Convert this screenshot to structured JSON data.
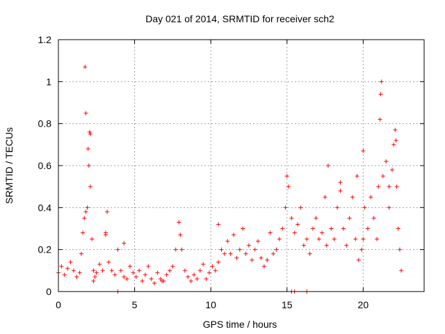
{
  "chart_data": {
    "type": "scatter",
    "title": "Day 021 of 2014, SRMTID for receiver sch2",
    "xlabel": "GPS time / hours",
    "ylabel": "SRMTID / TECUs",
    "xlim": [
      0,
      24
    ],
    "ylim": [
      0,
      1.2
    ],
    "xticks": [
      0,
      5,
      10,
      15,
      20
    ],
    "xtick_labels": [
      "0",
      "5",
      "10",
      "15",
      "20"
    ],
    "yticks": [
      0,
      0.2,
      0.4,
      0.6,
      0.8,
      1,
      1.2
    ],
    "ytick_labels": [
      "0",
      "0.2",
      "0.4",
      "0.6",
      "0.8",
      "1",
      "1.2"
    ],
    "grid": true,
    "marker": "+",
    "series": [
      {
        "name": "sch2",
        "color": "#ff0000",
        "x": [
          0.0,
          0.2,
          0.4,
          0.6,
          0.8,
          1.0,
          1.2,
          1.4,
          1.5,
          1.6,
          1.7,
          1.75,
          1.8,
          1.9,
          2.0,
          2.05,
          2.1,
          2.2,
          2.3,
          2.4,
          2.5,
          2.7,
          2.9,
          3.1,
          3.2,
          3.3,
          3.5,
          3.7,
          3.9,
          4.1,
          4.3,
          4.5,
          4.7,
          4.9,
          5.1,
          5.3,
          5.5,
          5.7,
          5.9,
          6.1,
          6.3,
          6.5,
          6.7,
          6.9,
          7.1,
          7.3,
          7.5,
          7.7,
          7.9,
          8.1,
          8.3,
          8.5,
          8.7,
          8.9,
          9.1,
          9.3,
          9.5,
          9.7,
          9.9,
          10.1,
          10.3,
          10.5,
          10.7,
          10.9,
          11.1,
          11.3,
          11.5,
          11.7,
          11.9,
          12.1,
          12.3,
          12.5,
          12.7,
          12.9,
          13.1,
          13.3,
          13.5,
          13.7,
          13.9,
          14.1,
          14.3,
          14.5,
          14.7,
          14.9,
          15.0,
          15.1,
          15.3,
          15.5,
          15.7,
          15.9,
          16.1,
          16.3,
          16.5,
          16.7,
          16.9,
          17.1,
          17.3,
          17.5,
          17.7,
          17.9,
          18.1,
          18.3,
          18.5,
          18.7,
          18.9,
          19.1,
          19.3,
          19.5,
          19.7,
          19.9,
          20.0,
          20.1,
          20.3,
          20.5,
          20.7,
          20.9,
          21.0,
          21.1,
          21.2,
          21.3,
          21.5,
          21.7,
          21.9,
          22.0,
          22.1,
          22.2,
          22.3,
          22.4,
          22.5,
          15.3,
          15.5,
          16.3,
          3.9,
          2.3,
          1.8,
          2.1,
          1.95,
          3.1,
          19.6,
          20.0,
          21.15,
          21.7,
          22.15,
          17.6,
          18.5,
          10.5,
          8.0,
          4.3,
          6.8
        ],
        "y": [
          0.09,
          0.12,
          0.08,
          0.11,
          0.14,
          0.1,
          0.07,
          0.09,
          0.18,
          0.28,
          0.35,
          1.07,
          0.85,
          0.4,
          0.6,
          0.76,
          0.5,
          0.25,
          0.1,
          0.07,
          0.09,
          0.13,
          0.1,
          0.28,
          0.38,
          0.14,
          0.1,
          0.08,
          0.2,
          0.1,
          0.07,
          0.06,
          0.12,
          0.09,
          0.07,
          0.1,
          0.05,
          0.08,
          0.12,
          0.06,
          0.04,
          0.09,
          0.06,
          0.05,
          0.08,
          0.1,
          0.12,
          0.2,
          0.33,
          0.2,
          0.1,
          0.07,
          0.05,
          0.08,
          0.06,
          0.1,
          0.13,
          0.06,
          0.09,
          0.12,
          0.1,
          0.14,
          0.2,
          0.18,
          0.24,
          0.18,
          0.27,
          0.16,
          0.2,
          0.3,
          0.18,
          0.22,
          0.15,
          0.2,
          0.24,
          0.16,
          0.12,
          0.15,
          0.28,
          0.18,
          0.2,
          0.25,
          0.3,
          0.4,
          0.55,
          0.5,
          0.35,
          0.28,
          0.32,
          0.4,
          0.22,
          0.25,
          0.18,
          0.3,
          0.35,
          0.25,
          0.28,
          0.45,
          0.6,
          0.3,
          0.25,
          0.4,
          0.52,
          0.3,
          0.22,
          0.35,
          0.45,
          0.25,
          0.15,
          0.2,
          0.67,
          0.4,
          0.3,
          0.45,
          0.35,
          0.25,
          0.5,
          0.82,
          1.0,
          0.55,
          0.62,
          0.4,
          0.58,
          0.7,
          0.77,
          0.5,
          0.3,
          0.2,
          0.1,
          0.0,
          0.0,
          0.0,
          0.0,
          0.05,
          0.38,
          0.75,
          0.68,
          0.27,
          0.55,
          0.25,
          0.94,
          0.5,
          0.72,
          0.22,
          0.48,
          0.32,
          0.27,
          0.23,
          0.05
        ]
      }
    ]
  }
}
